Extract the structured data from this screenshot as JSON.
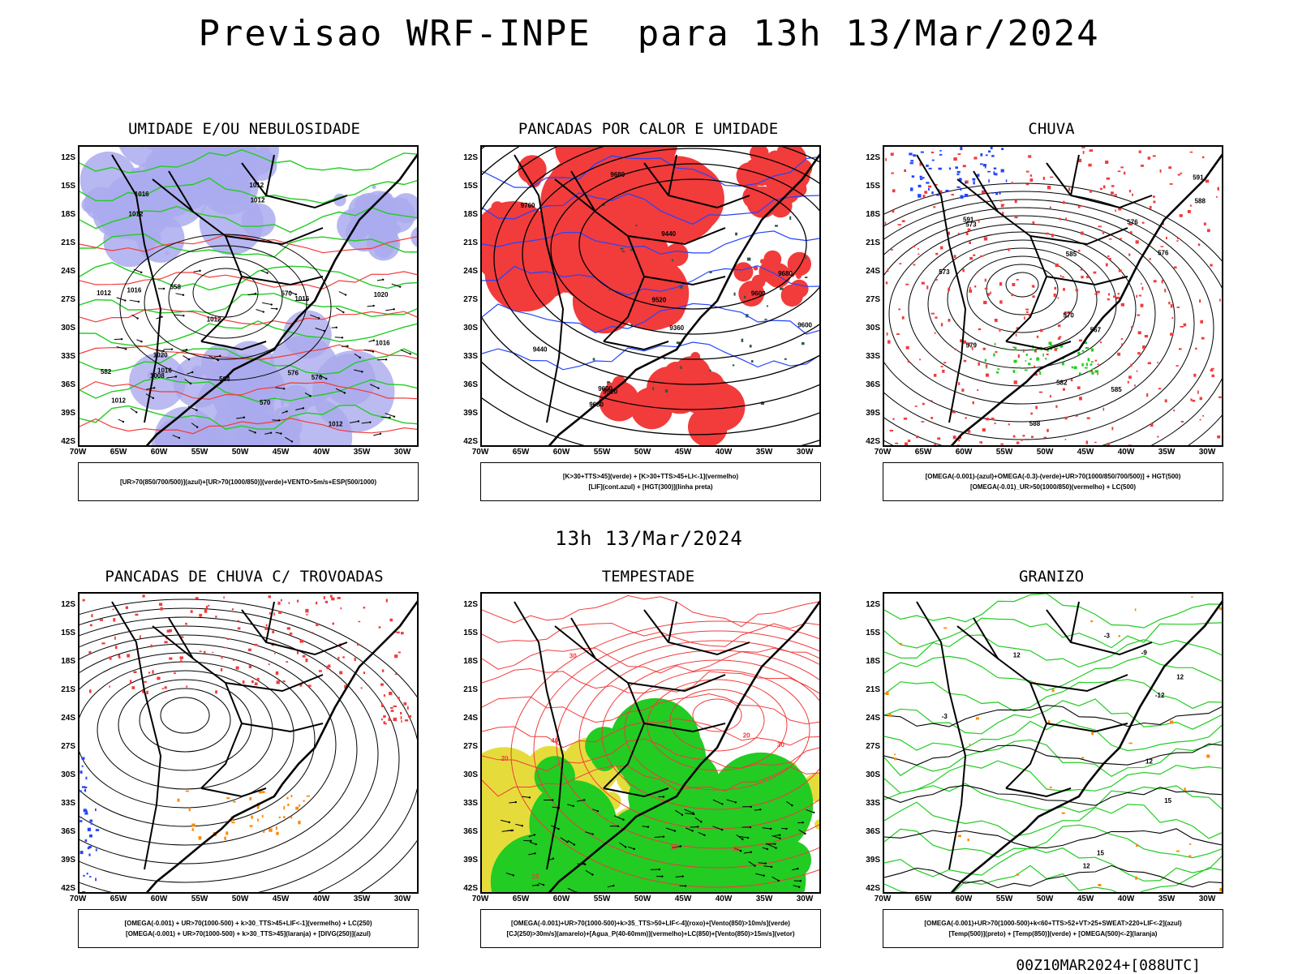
{
  "title": "Previsao WRF-INPE  para 13h 13/Mar/2024",
  "mid_date": "13h 13/Mar/2024",
  "footer": "00Z10MAR2024+[088UTC]",
  "lat_labels": [
    "12S",
    "15S",
    "18S",
    "21S",
    "24S",
    "27S",
    "30S",
    "33S",
    "36S",
    "39S",
    "42S"
  ],
  "lon_labels": [
    "70W",
    "65W",
    "60W",
    "55W",
    "50W",
    "45W",
    "40W",
    "35W",
    "30W"
  ],
  "colors": {
    "red": "#f23b3b",
    "green": "#22cc22",
    "blue": "#2244ff",
    "lavender": "#aaaaee",
    "dark_green": "#2c5a4a",
    "yellow": "#e5dc3c",
    "orange": "#ff8800",
    "magenta": "#cc33cc"
  },
  "panels": [
    {
      "title": "UMIDADE E/OU NEBULOSIDADE",
      "legend": [
        "[UR>70(850/700/500)](azul)+[UR>70(1000/850)](verde)+VENTO>5m/s+ESP(500/1000)"
      ],
      "contour_labels": [
        "1012",
        "1012",
        "1012",
        "1016",
        "1016",
        "1016",
        "1012",
        "1008",
        "1016",
        "1012",
        "1012",
        "1020",
        "1020",
        "1016",
        "1012",
        "570",
        "576",
        "582",
        "564",
        "570",
        "558",
        "576"
      ]
    },
    {
      "title": "PANCADAS POR CALOR E UMIDADE",
      "legend": [
        "[K>30+TTS>45](verde) + [K>30+TTS>45+LI<-1](vermelho)",
        "[LIF](cont.azul) + [HGT(300)](linha preta)"
      ],
      "contour_labels": [
        "9680",
        "9680",
        "9600",
        "9680",
        "9760",
        "9520",
        "9600",
        "9440",
        "9360",
        "9520",
        "9440",
        "9600"
      ]
    },
    {
      "title": "CHUVA",
      "legend": [
        "[OMEGA(-0.001)-(azul)+OMEGA(-0.3)-(verde)+UR>70(1000/850/700/500)] + HGT(500)",
        "[OMEGA(-0.01)_UR>50(1000/850)(vermelho) + LC(500)"
      ],
      "contour_labels": [
        "588",
        "591",
        "591",
        "585",
        "585",
        "588",
        "582",
        "579",
        "576",
        "573",
        "570",
        "567",
        "573",
        "576"
      ]
    },
    {
      "title": "PANCADAS DE CHUVA C/ TROVOADAS",
      "legend": [
        "[OMEGA(-0.001) + UR>70(1000-500) + k>30_TTS>45+LIF<-1](vermelho) + LC(250)",
        "[OMEGA(-0.001) + UR>70(1000-500) + k>30_TTS>45](laranja) + [DIVG(250)](azul)"
      ],
      "contour_labels": []
    },
    {
      "title": "TEMPESTADE",
      "legend": [
        "[OMEGA(-0.001)+UR>70(1000-500)+k>35_TTS>50+LIF<-4](roxo)+[Vento(850)>10m/s](verde)",
        "[CJ(250)>30m/s](amarelo)+[Agua_P(40-60mm)](vermelho)+LC(850)+[Vento(850)>15m/s](vetor)"
      ],
      "contour_labels": [
        "40",
        "40",
        "30",
        "30",
        "20",
        "20",
        "10",
        "10"
      ]
    },
    {
      "title": "GRANIZO",
      "legend": [
        "[OMEGA(-0.001)+UR>70(1000-500)+k<60+TTS>52+VT>25+SWEAT>220+LIF<-2](azul)",
        "[Temp(500)](preto) + [Temp(850)](verde) + [OMEGA(500)<-2](laranja)"
      ],
      "contour_labels": [
        "-3",
        "-3",
        "12",
        "15",
        "12",
        "-9",
        "-12",
        "12",
        "15",
        "12"
      ]
    }
  ]
}
